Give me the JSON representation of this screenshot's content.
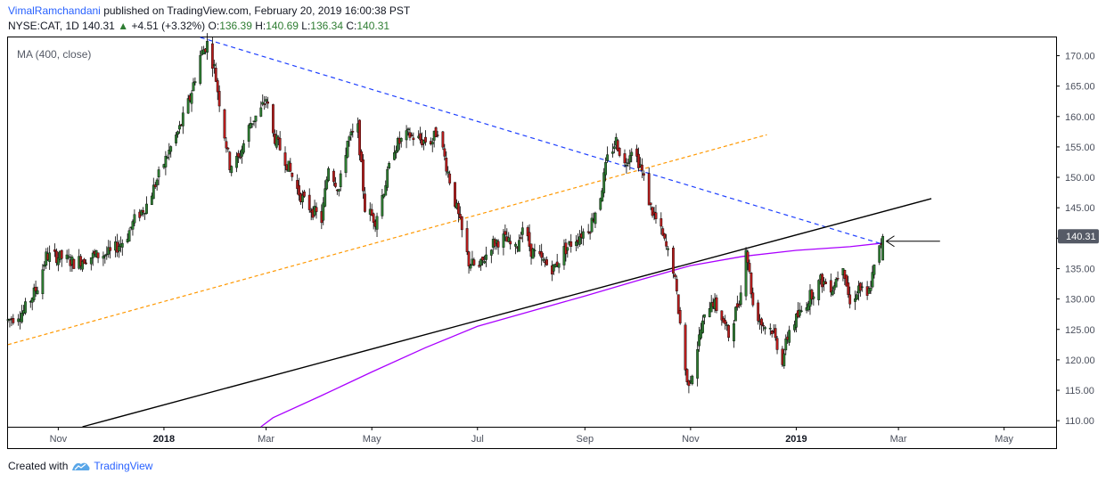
{
  "header": {
    "author": "VimalRamchandani",
    "published_text": "published on TradingView.com, February 20, 2019 16:00:38 PST",
    "symbol": "NYSE:CAT, 1D",
    "last": "140.31",
    "change_arrow": "▲",
    "change": "+4.51 (+3.32%)",
    "o_label": "O:",
    "o_value": "136.39",
    "h_label": "H:",
    "h_value": "140.69",
    "l_label": "L:",
    "l_value": "136.34",
    "c_label": "C:",
    "c_value": "140.31"
  },
  "indicator_label": "MA (400, close)",
  "price_tag": "140.31",
  "footer": {
    "created_with": "Created with",
    "brand": "TradingView"
  },
  "colors": {
    "up": "#2e7d32",
    "down": "#b71c1c",
    "ma": "#aa00ff",
    "blue_dashed": "#1e40ff",
    "orange_dashed": "#ff9800",
    "trendline": "#000000",
    "price_tag_bg": "#555a66"
  },
  "chart_data": {
    "type": "candlestick",
    "symbol": "NYSE:CAT",
    "interval": "1D",
    "ylim": [
      109,
      173
    ],
    "y_ticks": [
      110,
      115,
      120,
      125,
      130,
      135,
      140,
      145,
      150,
      155,
      160,
      165,
      170
    ],
    "y_tick_labels": [
      "110.00",
      "115.00",
      "120.00",
      "125.00",
      "130.00",
      "135.00",
      "140.00",
      "145.00",
      "150.00",
      "155.00",
      "160.00",
      "165.00",
      "170.00"
    ],
    "x_range": [
      "2017-10-03",
      "2019-05-31"
    ],
    "x_ticks": [
      {
        "date": "2017-11-01",
        "label": "Nov",
        "bold": false
      },
      {
        "date": "2018-01-01",
        "label": "2018",
        "bold": true
      },
      {
        "date": "2018-03-01",
        "label": "Mar",
        "bold": false
      },
      {
        "date": "2018-05-01",
        "label": "May",
        "bold": false
      },
      {
        "date": "2018-07-01",
        "label": "Jul",
        "bold": false
      },
      {
        "date": "2018-09-01",
        "label": "Sep",
        "bold": false
      },
      {
        "date": "2018-11-01",
        "label": "Nov",
        "bold": false
      },
      {
        "date": "2019-01-01",
        "label": "2019",
        "bold": true
      },
      {
        "date": "2019-03-01",
        "label": "Mar",
        "bold": false
      },
      {
        "date": "2019-05-01",
        "label": "May",
        "bold": false
      }
    ],
    "price_path": [
      [
        "2017-10-03",
        126.5
      ],
      [
        "2017-10-12",
        128
      ],
      [
        "2017-10-20",
        132
      ],
      [
        "2017-10-25",
        137
      ],
      [
        "2017-11-01",
        137
      ],
      [
        "2017-11-10",
        136
      ],
      [
        "2017-11-20",
        137
      ],
      [
        "2017-12-01",
        137.5
      ],
      [
        "2017-12-10",
        140
      ],
      [
        "2017-12-15",
        143
      ],
      [
        "2017-12-22",
        145.5
      ],
      [
        "2018-01-02",
        153
      ],
      [
        "2018-01-10",
        158
      ],
      [
        "2018-01-16",
        163
      ],
      [
        "2018-01-22",
        170
      ],
      [
        "2018-01-26",
        172
      ],
      [
        "2018-01-30",
        168
      ],
      [
        "2018-02-05",
        157
      ],
      [
        "2018-02-08",
        152
      ],
      [
        "2018-02-13",
        153
      ],
      [
        "2018-02-20",
        159
      ],
      [
        "2018-02-26",
        161
      ],
      [
        "2018-03-01",
        163
      ],
      [
        "2018-03-05",
        157
      ],
      [
        "2018-03-12",
        153
      ],
      [
        "2018-03-19",
        148
      ],
      [
        "2018-03-23",
        146
      ],
      [
        "2018-04-02",
        143
      ],
      [
        "2018-04-06",
        152
      ],
      [
        "2018-04-12",
        148
      ],
      [
        "2018-04-17",
        156
      ],
      [
        "2018-04-23",
        158
      ],
      [
        "2018-04-27",
        145
      ],
      [
        "2018-05-03",
        143
      ],
      [
        "2018-05-08",
        148
      ],
      [
        "2018-05-14",
        155
      ],
      [
        "2018-05-22",
        157
      ],
      [
        "2018-05-30",
        156
      ],
      [
        "2018-06-05",
        156
      ],
      [
        "2018-06-08",
        158
      ],
      [
        "2018-06-13",
        152
      ],
      [
        "2018-06-18",
        146
      ],
      [
        "2018-06-22",
        141
      ],
      [
        "2018-06-26",
        136
      ],
      [
        "2018-07-02",
        135
      ],
      [
        "2018-07-09",
        139
      ],
      [
        "2018-07-16",
        140
      ],
      [
        "2018-07-23",
        138
      ],
      [
        "2018-07-27",
        142
      ],
      [
        "2018-08-01",
        138
      ],
      [
        "2018-08-08",
        136
      ],
      [
        "2018-08-14",
        135
      ],
      [
        "2018-08-20",
        138
      ],
      [
        "2018-08-27",
        140
      ],
      [
        "2018-09-04",
        142
      ],
      [
        "2018-09-10",
        147
      ],
      [
        "2018-09-14",
        153
      ],
      [
        "2018-09-19",
        156
      ],
      [
        "2018-09-24",
        152
      ],
      [
        "2018-09-28",
        155
      ],
      [
        "2018-10-03",
        152
      ],
      [
        "2018-10-09",
        145
      ],
      [
        "2018-10-15",
        141
      ],
      [
        "2018-10-22",
        135
      ],
      [
        "2018-10-26",
        126
      ],
      [
        "2018-10-30",
        116
      ],
      [
        "2018-11-02",
        118
      ],
      [
        "2018-11-07",
        125
      ],
      [
        "2018-11-13",
        130
      ],
      [
        "2018-11-19",
        127
      ],
      [
        "2018-11-23",
        124
      ],
      [
        "2018-11-30",
        131
      ],
      [
        "2018-12-03",
        139
      ],
      [
        "2018-12-07",
        129
      ],
      [
        "2018-12-12",
        126
      ],
      [
        "2018-12-18",
        125
      ],
      [
        "2018-12-24",
        120
      ],
      [
        "2018-12-28",
        125
      ],
      [
        "2019-01-04",
        128
      ],
      [
        "2019-01-10",
        131
      ],
      [
        "2019-01-15",
        133
      ],
      [
        "2019-01-22",
        132
      ],
      [
        "2019-01-28",
        136
      ],
      [
        "2019-02-01",
        129
      ],
      [
        "2019-02-06",
        132
      ],
      [
        "2019-02-11",
        130
      ],
      [
        "2019-02-15",
        135
      ],
      [
        "2019-02-20",
        140.3
      ]
    ],
    "ma_400": [
      [
        "2018-02-26",
        109
      ],
      [
        "2018-03-05",
        110.5
      ],
      [
        "2018-04-01",
        114
      ],
      [
        "2018-05-01",
        118
      ],
      [
        "2018-06-01",
        122
      ],
      [
        "2018-07-01",
        125.5
      ],
      [
        "2018-08-01",
        128
      ],
      [
        "2018-09-01",
        130.5
      ],
      [
        "2018-10-01",
        133
      ],
      [
        "2018-11-01",
        135.5
      ],
      [
        "2018-12-01",
        137
      ],
      [
        "2019-01-01",
        138
      ],
      [
        "2019-02-01",
        138.6
      ],
      [
        "2019-02-20",
        139.2
      ]
    ],
    "trendlines": [
      {
        "style": "dashed",
        "color": "blue",
        "from": [
          "2018-01-22",
          173
        ],
        "to": [
          "2019-02-20",
          139
        ]
      },
      {
        "style": "dashed",
        "color": "orange",
        "from": [
          "2017-10-03",
          122.5
        ],
        "to": [
          "2018-12-15",
          157
        ]
      },
      {
        "style": "solid",
        "color": "black",
        "from": [
          "2017-11-15",
          109
        ],
        "to": [
          "2019-03-20",
          146.5
        ]
      }
    ],
    "arrow": {
      "from": [
        "2019-03-25",
        139.5
      ],
      "to": [
        "2019-02-22",
        139.5
      ]
    }
  }
}
